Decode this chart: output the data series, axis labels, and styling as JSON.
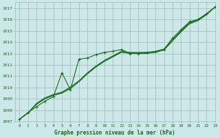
{
  "title": "Graphe pression niveau de la mer (hPa)",
  "xlim": [
    -0.5,
    23
  ],
  "ylim": [
    1007,
    1017.5
  ],
  "xticks": [
    0,
    1,
    2,
    3,
    4,
    5,
    6,
    7,
    8,
    9,
    10,
    11,
    12,
    13,
    14,
    15,
    16,
    17,
    18,
    19,
    20,
    21,
    22,
    23
  ],
  "yticks": [
    1007,
    1008,
    1009,
    1010,
    1011,
    1012,
    1013,
    1014,
    1015,
    1016,
    1017
  ],
  "background_color": "#cce8e8",
  "grid_color": "#99bbbb",
  "line_color": "#1a6b1a",
  "marker_color": "#1a6b1a",
  "line_marker_x": [
    0,
    1,
    2,
    3,
    4,
    5,
    6,
    7,
    8,
    9,
    10,
    11,
    12,
    13,
    14,
    15,
    16,
    17,
    18,
    19,
    20,
    21,
    22,
    23
  ],
  "line_marker_y": [
    1007.2,
    1007.8,
    1008.3,
    1008.8,
    1009.2,
    1011.3,
    1009.8,
    1012.5,
    1012.6,
    1012.9,
    1013.1,
    1013.2,
    1013.35,
    1013.0,
    1013.0,
    1013.1,
    1013.15,
    1013.35,
    1014.35,
    1015.1,
    1015.8,
    1016.0,
    1016.5,
    1017.1
  ],
  "line_smooth1_x": [
    0,
    1,
    2,
    3,
    4,
    5,
    6,
    7,
    8,
    9,
    10,
    11,
    12,
    13,
    14,
    15,
    16,
    17,
    18,
    19,
    20,
    21,
    22,
    23
  ],
  "line_smooth1_y": [
    1007.2,
    1007.75,
    1008.5,
    1009.0,
    1009.3,
    1009.5,
    1009.9,
    1010.5,
    1011.2,
    1011.8,
    1012.3,
    1012.7,
    1013.1,
    1013.0,
    1013.0,
    1013.0,
    1013.1,
    1013.3,
    1014.1,
    1014.9,
    1015.6,
    1015.9,
    1016.4,
    1017.1
  ],
  "line_smooth2_x": [
    0,
    1,
    2,
    3,
    4,
    5,
    6,
    7,
    8,
    9,
    10,
    11,
    12,
    13,
    14,
    15,
    16,
    17,
    18,
    19,
    20,
    21,
    22,
    23
  ],
  "line_smooth2_y": [
    1007.2,
    1007.75,
    1008.55,
    1009.05,
    1009.35,
    1009.55,
    1010.0,
    1010.55,
    1011.25,
    1011.85,
    1012.35,
    1012.75,
    1013.15,
    1013.05,
    1013.05,
    1013.05,
    1013.15,
    1013.35,
    1014.15,
    1014.95,
    1015.65,
    1015.95,
    1016.45,
    1017.1
  ],
  "line_smooth3_x": [
    0,
    1,
    2,
    3,
    4,
    5,
    6,
    7,
    8,
    9,
    10,
    11,
    12,
    13,
    14,
    15,
    16,
    17,
    18,
    19,
    20,
    21,
    22,
    23
  ],
  "line_smooth3_y": [
    1007.2,
    1007.75,
    1008.6,
    1009.1,
    1009.4,
    1009.6,
    1010.05,
    1010.6,
    1011.3,
    1011.9,
    1012.4,
    1012.8,
    1013.2,
    1013.1,
    1013.1,
    1013.1,
    1013.2,
    1013.4,
    1014.2,
    1015.0,
    1015.7,
    1016.0,
    1016.5,
    1017.1
  ]
}
